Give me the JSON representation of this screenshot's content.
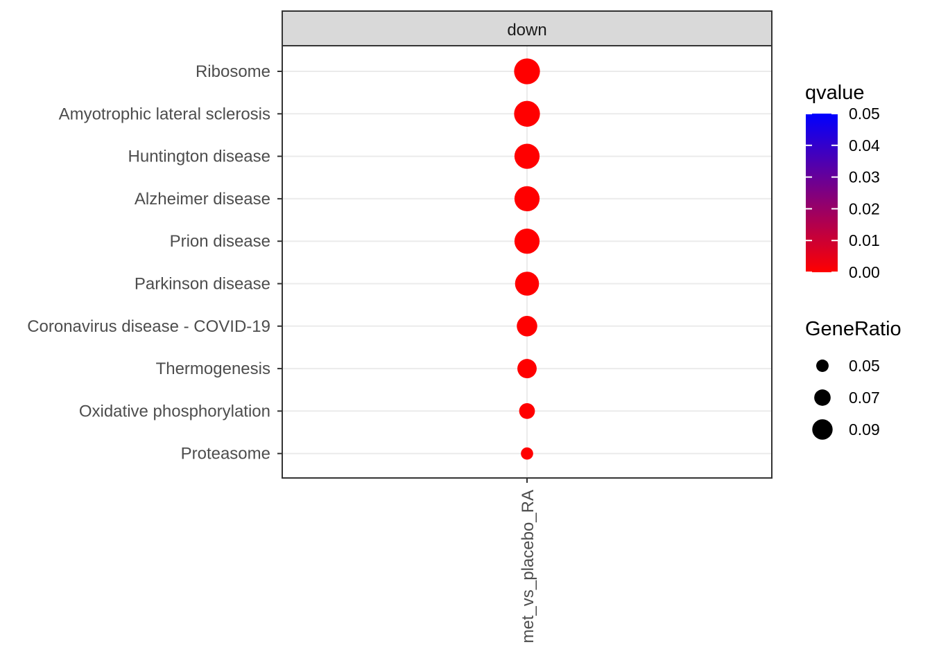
{
  "chart_data": {
    "type": "scatter",
    "facet": "down",
    "x": [
      "met_vs_placebo_RA"
    ],
    "categories": [
      "Ribosome",
      "Amyotrophic lateral sclerosis",
      "Huntington disease",
      "Alzheimer disease",
      "Prion disease",
      "Parkinson disease",
      "Coronavirus disease - COVID-19",
      "Thermogenesis",
      "Oxidative phosphorylation",
      "Proteasome"
    ],
    "points": [
      {
        "term": "Ribosome",
        "x": "met_vs_placebo_RA",
        "gene_ratio": 0.098,
        "qvalue": 0.0
      },
      {
        "term": "Amyotrophic lateral sclerosis",
        "x": "met_vs_placebo_RA",
        "gene_ratio": 0.098,
        "qvalue": 0.0
      },
      {
        "term": "Huntington disease",
        "x": "met_vs_placebo_RA",
        "gene_ratio": 0.095,
        "qvalue": 0.0
      },
      {
        "term": "Alzheimer disease",
        "x": "met_vs_placebo_RA",
        "gene_ratio": 0.095,
        "qvalue": 0.0
      },
      {
        "term": "Prion disease",
        "x": "met_vs_placebo_RA",
        "gene_ratio": 0.095,
        "qvalue": 0.0
      },
      {
        "term": "Parkinson disease",
        "x": "met_vs_placebo_RA",
        "gene_ratio": 0.09,
        "qvalue": 0.0
      },
      {
        "term": "Coronavirus disease - COVID-19",
        "x": "met_vs_placebo_RA",
        "gene_ratio": 0.075,
        "qvalue": 0.0
      },
      {
        "term": "Thermogenesis",
        "x": "met_vs_placebo_RA",
        "gene_ratio": 0.07,
        "qvalue": 0.0
      },
      {
        "term": "Oxidative phosphorylation",
        "x": "met_vs_placebo_RA",
        "gene_ratio": 0.055,
        "qvalue": 0.0
      },
      {
        "term": "Proteasome",
        "x": "met_vs_placebo_RA",
        "gene_ratio": 0.04,
        "qvalue": 0.0
      }
    ],
    "color_legend": {
      "title": "qvalue",
      "ticks": [
        "0.05",
        "0.04",
        "0.03",
        "0.02",
        "0.01",
        "0.00"
      ],
      "range": [
        0.0,
        0.05
      ],
      "low_color": "#ff0000",
      "high_color": "#0000ff"
    },
    "size_legend": {
      "title": "GeneRatio",
      "entries": [
        {
          "label": "0.05",
          "value": 0.05
        },
        {
          "label": "0.07",
          "value": 0.07
        },
        {
          "label": "0.09",
          "value": 0.09
        }
      ]
    },
    "grid": true,
    "legend_position": "right"
  }
}
